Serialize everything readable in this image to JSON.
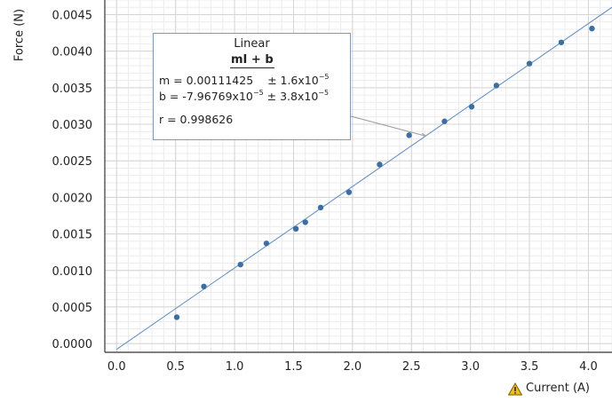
{
  "chart_data": {
    "type": "scatter",
    "xlabel": "Current (A)",
    "ylabel": "Force (N)",
    "xlim": [
      -0.1,
      4.2
    ],
    "ylim": [
      -0.00012,
      0.0047
    ],
    "x_ticks": [
      "0.0",
      "0.5",
      "1.0",
      "1.5",
      "2.0",
      "2.5",
      "3.0",
      "3.5",
      "4.0"
    ],
    "y_ticks": [
      "0.0000",
      "0.0005",
      "0.0010",
      "0.0015",
      "0.0020",
      "0.0025",
      "0.0030",
      "0.0035",
      "0.0040",
      "0.0045"
    ],
    "grid": true,
    "series": [
      {
        "x": [
          0.51,
          0.74,
          1.05,
          1.27,
          1.52,
          1.6,
          1.73,
          1.97,
          2.23,
          2.48,
          2.78,
          3.01,
          3.22,
          3.5,
          3.77,
          4.03
        ],
        "y": [
          0.00036,
          0.00078,
          0.00108,
          0.00137,
          0.00157,
          0.00166,
          0.00186,
          0.00207,
          0.00245,
          0.00285,
          0.00304,
          0.00324,
          0.00353,
          0.00383,
          0.00412,
          0.00431
        ]
      }
    ],
    "fit": {
      "title": "Linear",
      "equation": "mI + b",
      "m_label": "m = 0.00111425",
      "m_unc_base": "± 1.6x10",
      "m_unc_exp": "−5",
      "b_label": "b  = -7.96769x10",
      "b_exp": "−5",
      "b_unc_base": "± 3.8x10",
      "b_unc_exp": "−5",
      "r_label": "r = 0.998626",
      "m": 0.00111425,
      "b": -7.96769e-05,
      "marker_x": 2.62
    },
    "colors": {
      "points": "#3a6ea5",
      "line": "#5b8cc8",
      "grid": "#d4d4d4",
      "axis": "#333333",
      "box_border": "#6f9ccd"
    },
    "warning_icon": "warning-triangle-icon"
  }
}
